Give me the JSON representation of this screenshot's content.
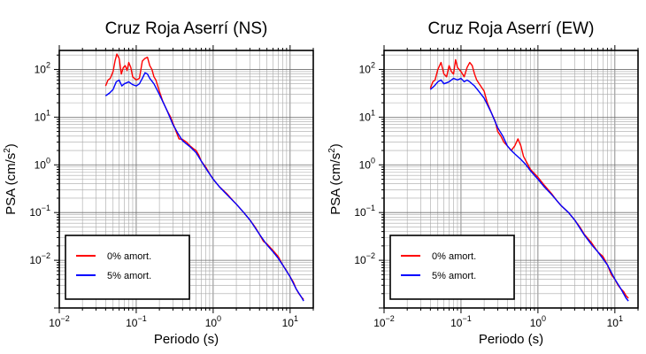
{
  "chart_data": [
    {
      "type": "line",
      "title": "Cruz Roja Aserrí (NS)",
      "xlabel": "Periodo (s)",
      "ylabel_main": "PSA (cm/s",
      "ylabel_sup": "2",
      "ylabel_close": ")",
      "xscale": "log",
      "yscale": "log",
      "xlim": [
        0.01,
        20
      ],
      "ylim": [
        0.001,
        250
      ],
      "grid": true,
      "legend_position": "bottom-left",
      "x_ticks": [
        {
          "value": 0.01,
          "base": "10",
          "exp": "−2"
        },
        {
          "value": 0.1,
          "base": "10",
          "exp": "−1"
        },
        {
          "value": 1,
          "base": "10",
          "exp": "0"
        },
        {
          "value": 10,
          "base": "10",
          "exp": "1"
        }
      ],
      "y_ticks": [
        {
          "value": 0.01,
          "base": "10",
          "exp": "−2"
        },
        {
          "value": 0.1,
          "base": "10",
          "exp": "−1"
        },
        {
          "value": 1,
          "base": "10",
          "exp": "0"
        },
        {
          "value": 10,
          "base": "10",
          "exp": "1"
        },
        {
          "value": 100,
          "base": "10",
          "exp": "2"
        }
      ],
      "series": [
        {
          "name": "0% amort.",
          "color": "#ff0000",
          "points": [
            [
              0.04,
              45
            ],
            [
              0.043,
              60
            ],
            [
              0.046,
              65
            ],
            [
              0.05,
              90
            ],
            [
              0.053,
              150
            ],
            [
              0.056,
              210
            ],
            [
              0.06,
              170
            ],
            [
              0.064,
              80
            ],
            [
              0.068,
              110
            ],
            [
              0.072,
              120
            ],
            [
              0.076,
              95
            ],
            [
              0.08,
              140
            ],
            [
              0.085,
              110
            ],
            [
              0.09,
              70
            ],
            [
              0.1,
              60
            ],
            [
              0.11,
              65
            ],
            [
              0.12,
              150
            ],
            [
              0.13,
              170
            ],
            [
              0.14,
              180
            ],
            [
              0.15,
              120
            ],
            [
              0.16,
              100
            ],
            [
              0.17,
              70
            ],
            [
              0.18,
              60
            ],
            [
              0.2,
              35
            ],
            [
              0.22,
              22
            ],
            [
              0.25,
              14
            ],
            [
              0.28,
              10
            ],
            [
              0.3,
              7.5
            ],
            [
              0.33,
              5
            ],
            [
              0.36,
              3.5
            ],
            [
              0.4,
              3.4
            ],
            [
              0.45,
              3.0
            ],
            [
              0.5,
              2.5
            ],
            [
              0.55,
              2.2
            ],
            [
              0.6,
              2.0
            ],
            [
              0.65,
              1.6
            ],
            [
              0.7,
              1.2
            ],
            [
              0.8,
              0.9
            ],
            [
              0.9,
              0.65
            ],
            [
              1.0,
              0.5
            ],
            [
              1.2,
              0.35
            ],
            [
              1.5,
              0.25
            ],
            [
              1.8,
              0.18
            ],
            [
              2.0,
              0.15
            ],
            [
              2.5,
              0.1
            ],
            [
              3.0,
              0.07
            ],
            [
              3.5,
              0.05
            ],
            [
              4.0,
              0.035
            ],
            [
              4.5,
              0.025
            ],
            [
              5.0,
              0.022
            ],
            [
              6.0,
              0.016
            ],
            [
              7.0,
              0.012
            ],
            [
              8.0,
              0.008
            ],
            [
              9.0,
              0.006
            ],
            [
              10.0,
              0.0045
            ],
            [
              11.0,
              0.0035
            ],
            [
              12.0,
              0.0025
            ],
            [
              13.0,
              0.002
            ],
            [
              14.0,
              0.0017
            ],
            [
              15.0,
              0.0015
            ]
          ]
        },
        {
          "name": "5% amort.",
          "color": "#0000ff",
          "points": [
            [
              0.04,
              28
            ],
            [
              0.045,
              32
            ],
            [
              0.05,
              38
            ],
            [
              0.055,
              55
            ],
            [
              0.06,
              60
            ],
            [
              0.065,
              45
            ],
            [
              0.07,
              50
            ],
            [
              0.08,
              55
            ],
            [
              0.09,
              48
            ],
            [
              0.1,
              45
            ],
            [
              0.11,
              50
            ],
            [
              0.12,
              65
            ],
            [
              0.13,
              85
            ],
            [
              0.14,
              80
            ],
            [
              0.15,
              65
            ],
            [
              0.17,
              50
            ],
            [
              0.2,
              30
            ],
            [
              0.25,
              14
            ],
            [
              0.3,
              7
            ],
            [
              0.35,
              4.5
            ],
            [
              0.4,
              3.2
            ],
            [
              0.5,
              2.4
            ],
            [
              0.6,
              1.8
            ],
            [
              0.7,
              1.2
            ],
            [
              0.8,
              0.85
            ],
            [
              1.0,
              0.5
            ],
            [
              1.2,
              0.35
            ],
            [
              1.5,
              0.24
            ],
            [
              2.0,
              0.15
            ],
            [
              2.5,
              0.1
            ],
            [
              3.0,
              0.07
            ],
            [
              4.0,
              0.035
            ],
            [
              5.0,
              0.021
            ],
            [
              6.0,
              0.015
            ],
            [
              7.0,
              0.011
            ],
            [
              8.0,
              0.008
            ],
            [
              10.0,
              0.0045
            ],
            [
              12.0,
              0.0025
            ],
            [
              14.0,
              0.0017
            ],
            [
              15.0,
              0.0014
            ]
          ]
        }
      ]
    },
    {
      "type": "line",
      "title": "Cruz Roja Aserrí (EW)",
      "xlabel": "Periodo (s)",
      "ylabel_main": "PSA (cm/s",
      "ylabel_sup": "2",
      "ylabel_close": ")",
      "xscale": "log",
      "yscale": "log",
      "xlim": [
        0.01,
        20
      ],
      "ylim": [
        0.001,
        250
      ],
      "grid": true,
      "legend_position": "bottom-left",
      "x_ticks": [
        {
          "value": 0.01,
          "base": "10",
          "exp": "−2"
        },
        {
          "value": 0.1,
          "base": "10",
          "exp": "−1"
        },
        {
          "value": 1,
          "base": "10",
          "exp": "0"
        },
        {
          "value": 10,
          "base": "10",
          "exp": "1"
        }
      ],
      "y_ticks": [
        {
          "value": 0.01,
          "base": "10",
          "exp": "−2"
        },
        {
          "value": 0.1,
          "base": "10",
          "exp": "−1"
        },
        {
          "value": 1,
          "base": "10",
          "exp": "0"
        },
        {
          "value": 10,
          "base": "10",
          "exp": "1"
        },
        {
          "value": 100,
          "base": "10",
          "exp": "2"
        }
      ],
      "series": [
        {
          "name": "0% amort.",
          "color": "#ff0000",
          "points": [
            [
              0.04,
              40
            ],
            [
              0.043,
              55
            ],
            [
              0.046,
              60
            ],
            [
              0.05,
              100
            ],
            [
              0.055,
              140
            ],
            [
              0.06,
              80
            ],
            [
              0.065,
              70
            ],
            [
              0.07,
              120
            ],
            [
              0.075,
              90
            ],
            [
              0.08,
              80
            ],
            [
              0.085,
              160
            ],
            [
              0.09,
              110
            ],
            [
              0.1,
              90
            ],
            [
              0.11,
              70
            ],
            [
              0.12,
              110
            ],
            [
              0.13,
              140
            ],
            [
              0.14,
              120
            ],
            [
              0.15,
              80
            ],
            [
              0.16,
              60
            ],
            [
              0.18,
              45
            ],
            [
              0.2,
              35
            ],
            [
              0.22,
              20
            ],
            [
              0.25,
              12
            ],
            [
              0.28,
              8
            ],
            [
              0.3,
              5
            ],
            [
              0.33,
              4
            ],
            [
              0.36,
              3
            ],
            [
              0.4,
              2.5
            ],
            [
              0.45,
              2.0
            ],
            [
              0.5,
              2.5
            ],
            [
              0.55,
              3.5
            ],
            [
              0.6,
              2.5
            ],
            [
              0.65,
              1.5
            ],
            [
              0.7,
              1.2
            ],
            [
              0.8,
              0.8
            ],
            [
              1.0,
              0.55
            ],
            [
              1.2,
              0.38
            ],
            [
              1.5,
              0.25
            ],
            [
              1.8,
              0.17
            ],
            [
              2.0,
              0.14
            ],
            [
              2.5,
              0.1
            ],
            [
              3.0,
              0.07
            ],
            [
              3.5,
              0.05
            ],
            [
              4.0,
              0.035
            ],
            [
              5.0,
              0.023
            ],
            [
              6.0,
              0.015
            ],
            [
              7.0,
              0.012
            ],
            [
              8.0,
              0.008
            ],
            [
              9.0,
              0.005
            ],
            [
              10.0,
              0.004
            ],
            [
              11.0,
              0.003
            ],
            [
              12.0,
              0.0025
            ],
            [
              13.0,
              0.0022
            ],
            [
              14.0,
              0.0018
            ],
            [
              15.0,
              0.0016
            ]
          ]
        },
        {
          "name": "5% amort.",
          "color": "#0000ff",
          "points": [
            [
              0.04,
              38
            ],
            [
              0.045,
              45
            ],
            [
              0.05,
              55
            ],
            [
              0.055,
              60
            ],
            [
              0.06,
              50
            ],
            [
              0.07,
              55
            ],
            [
              0.08,
              65
            ],
            [
              0.09,
              60
            ],
            [
              0.1,
              65
            ],
            [
              0.11,
              55
            ],
            [
              0.12,
              60
            ],
            [
              0.13,
              55
            ],
            [
              0.15,
              45
            ],
            [
              0.17,
              35
            ],
            [
              0.2,
              25
            ],
            [
              0.25,
              12
            ],
            [
              0.3,
              6
            ],
            [
              0.35,
              4
            ],
            [
              0.4,
              2.5
            ],
            [
              0.45,
              2.0
            ],
            [
              0.5,
              1.7
            ],
            [
              0.6,
              1.3
            ],
            [
              0.7,
              1.0
            ],
            [
              0.8,
              0.75
            ],
            [
              1.0,
              0.5
            ],
            [
              1.2,
              0.35
            ],
            [
              1.5,
              0.24
            ],
            [
              2.0,
              0.14
            ],
            [
              2.5,
              0.1
            ],
            [
              3.0,
              0.07
            ],
            [
              4.0,
              0.034
            ],
            [
              5.0,
              0.021
            ],
            [
              6.0,
              0.015
            ],
            [
              8.0,
              0.008
            ],
            [
              10.0,
              0.004
            ],
            [
              12.0,
              0.0025
            ],
            [
              14.0,
              0.0016
            ],
            [
              15.0,
              0.0014
            ]
          ]
        }
      ]
    }
  ]
}
